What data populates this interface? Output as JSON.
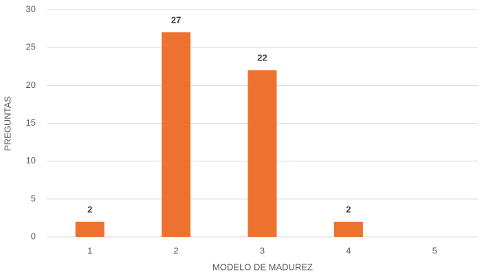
{
  "chart_data": {
    "type": "bar",
    "categories": [
      "1",
      "2",
      "3",
      "4",
      "5"
    ],
    "values": [
      2,
      27,
      22,
      2,
      null
    ],
    "color": "#ed7230",
    "xlabel": "MODELO DE MADUREZ",
    "ylabel": "PREGUNTAS",
    "ylim": [
      0,
      30
    ],
    "yticks": [
      0,
      5,
      10,
      15,
      20,
      25,
      30
    ],
    "grid": true
  }
}
